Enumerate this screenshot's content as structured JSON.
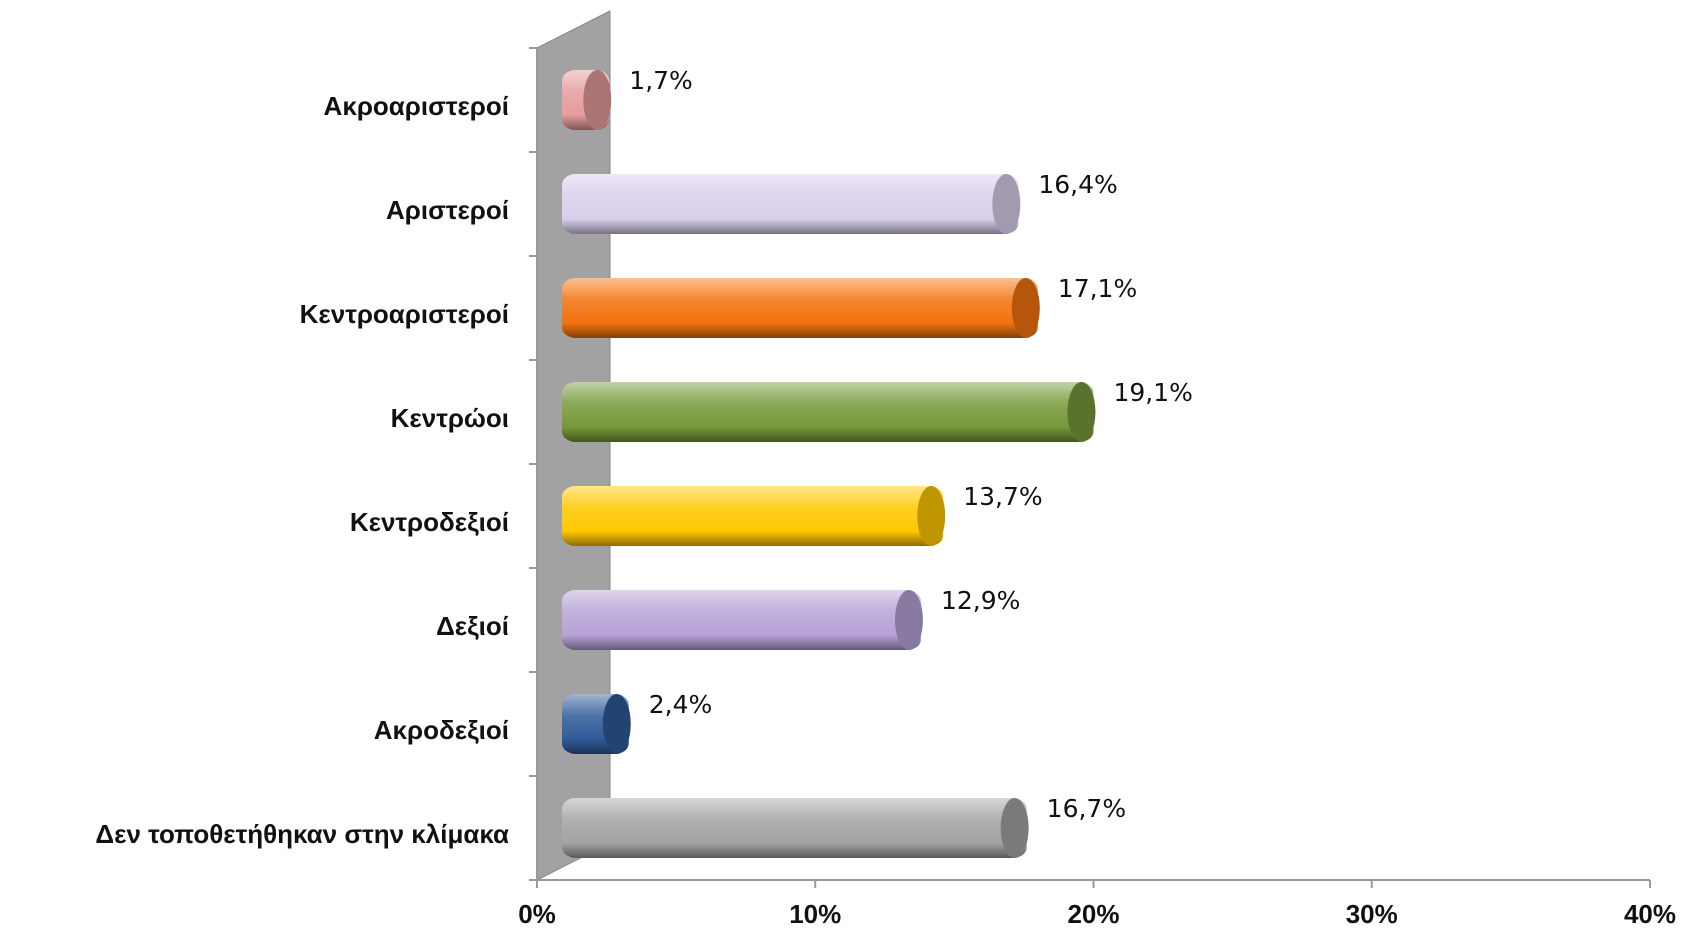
{
  "chart_data": {
    "type": "bar",
    "orientation": "horizontal",
    "categories": [
      "Ακροαριστεροί",
      "Αριστεροί",
      "Κεντροαριστεροί",
      "Κεντρώοι",
      "Κεντροδεξιοί",
      "Δεξιοί",
      "Ακροδεξιοί",
      "Δεν τοποθετήθηκαν  στην κλίμακα"
    ],
    "values": [
      1.7,
      16.4,
      17.1,
      19.1,
      13.7,
      12.9,
      2.4,
      16.7
    ],
    "value_labels": [
      "1,7%",
      "16,4%",
      "17,1%",
      "19,1%",
      "13,7%",
      "12,9%",
      "2,4%",
      "16,7%"
    ],
    "colors": [
      "#e59c9c",
      "#d8cfeb",
      "#f2720f",
      "#76993a",
      "#ffc800",
      "#b7a2d6",
      "#2f5b99",
      "#a3a3a3"
    ],
    "xlim": [
      0,
      40
    ],
    "xticks": [
      {
        "value": 0,
        "label": "0%"
      },
      {
        "value": 10,
        "label": "10%"
      },
      {
        "value": 20,
        "label": "20%"
      },
      {
        "value": 30,
        "label": "30%"
      },
      {
        "value": 40,
        "label": "40%"
      }
    ]
  }
}
